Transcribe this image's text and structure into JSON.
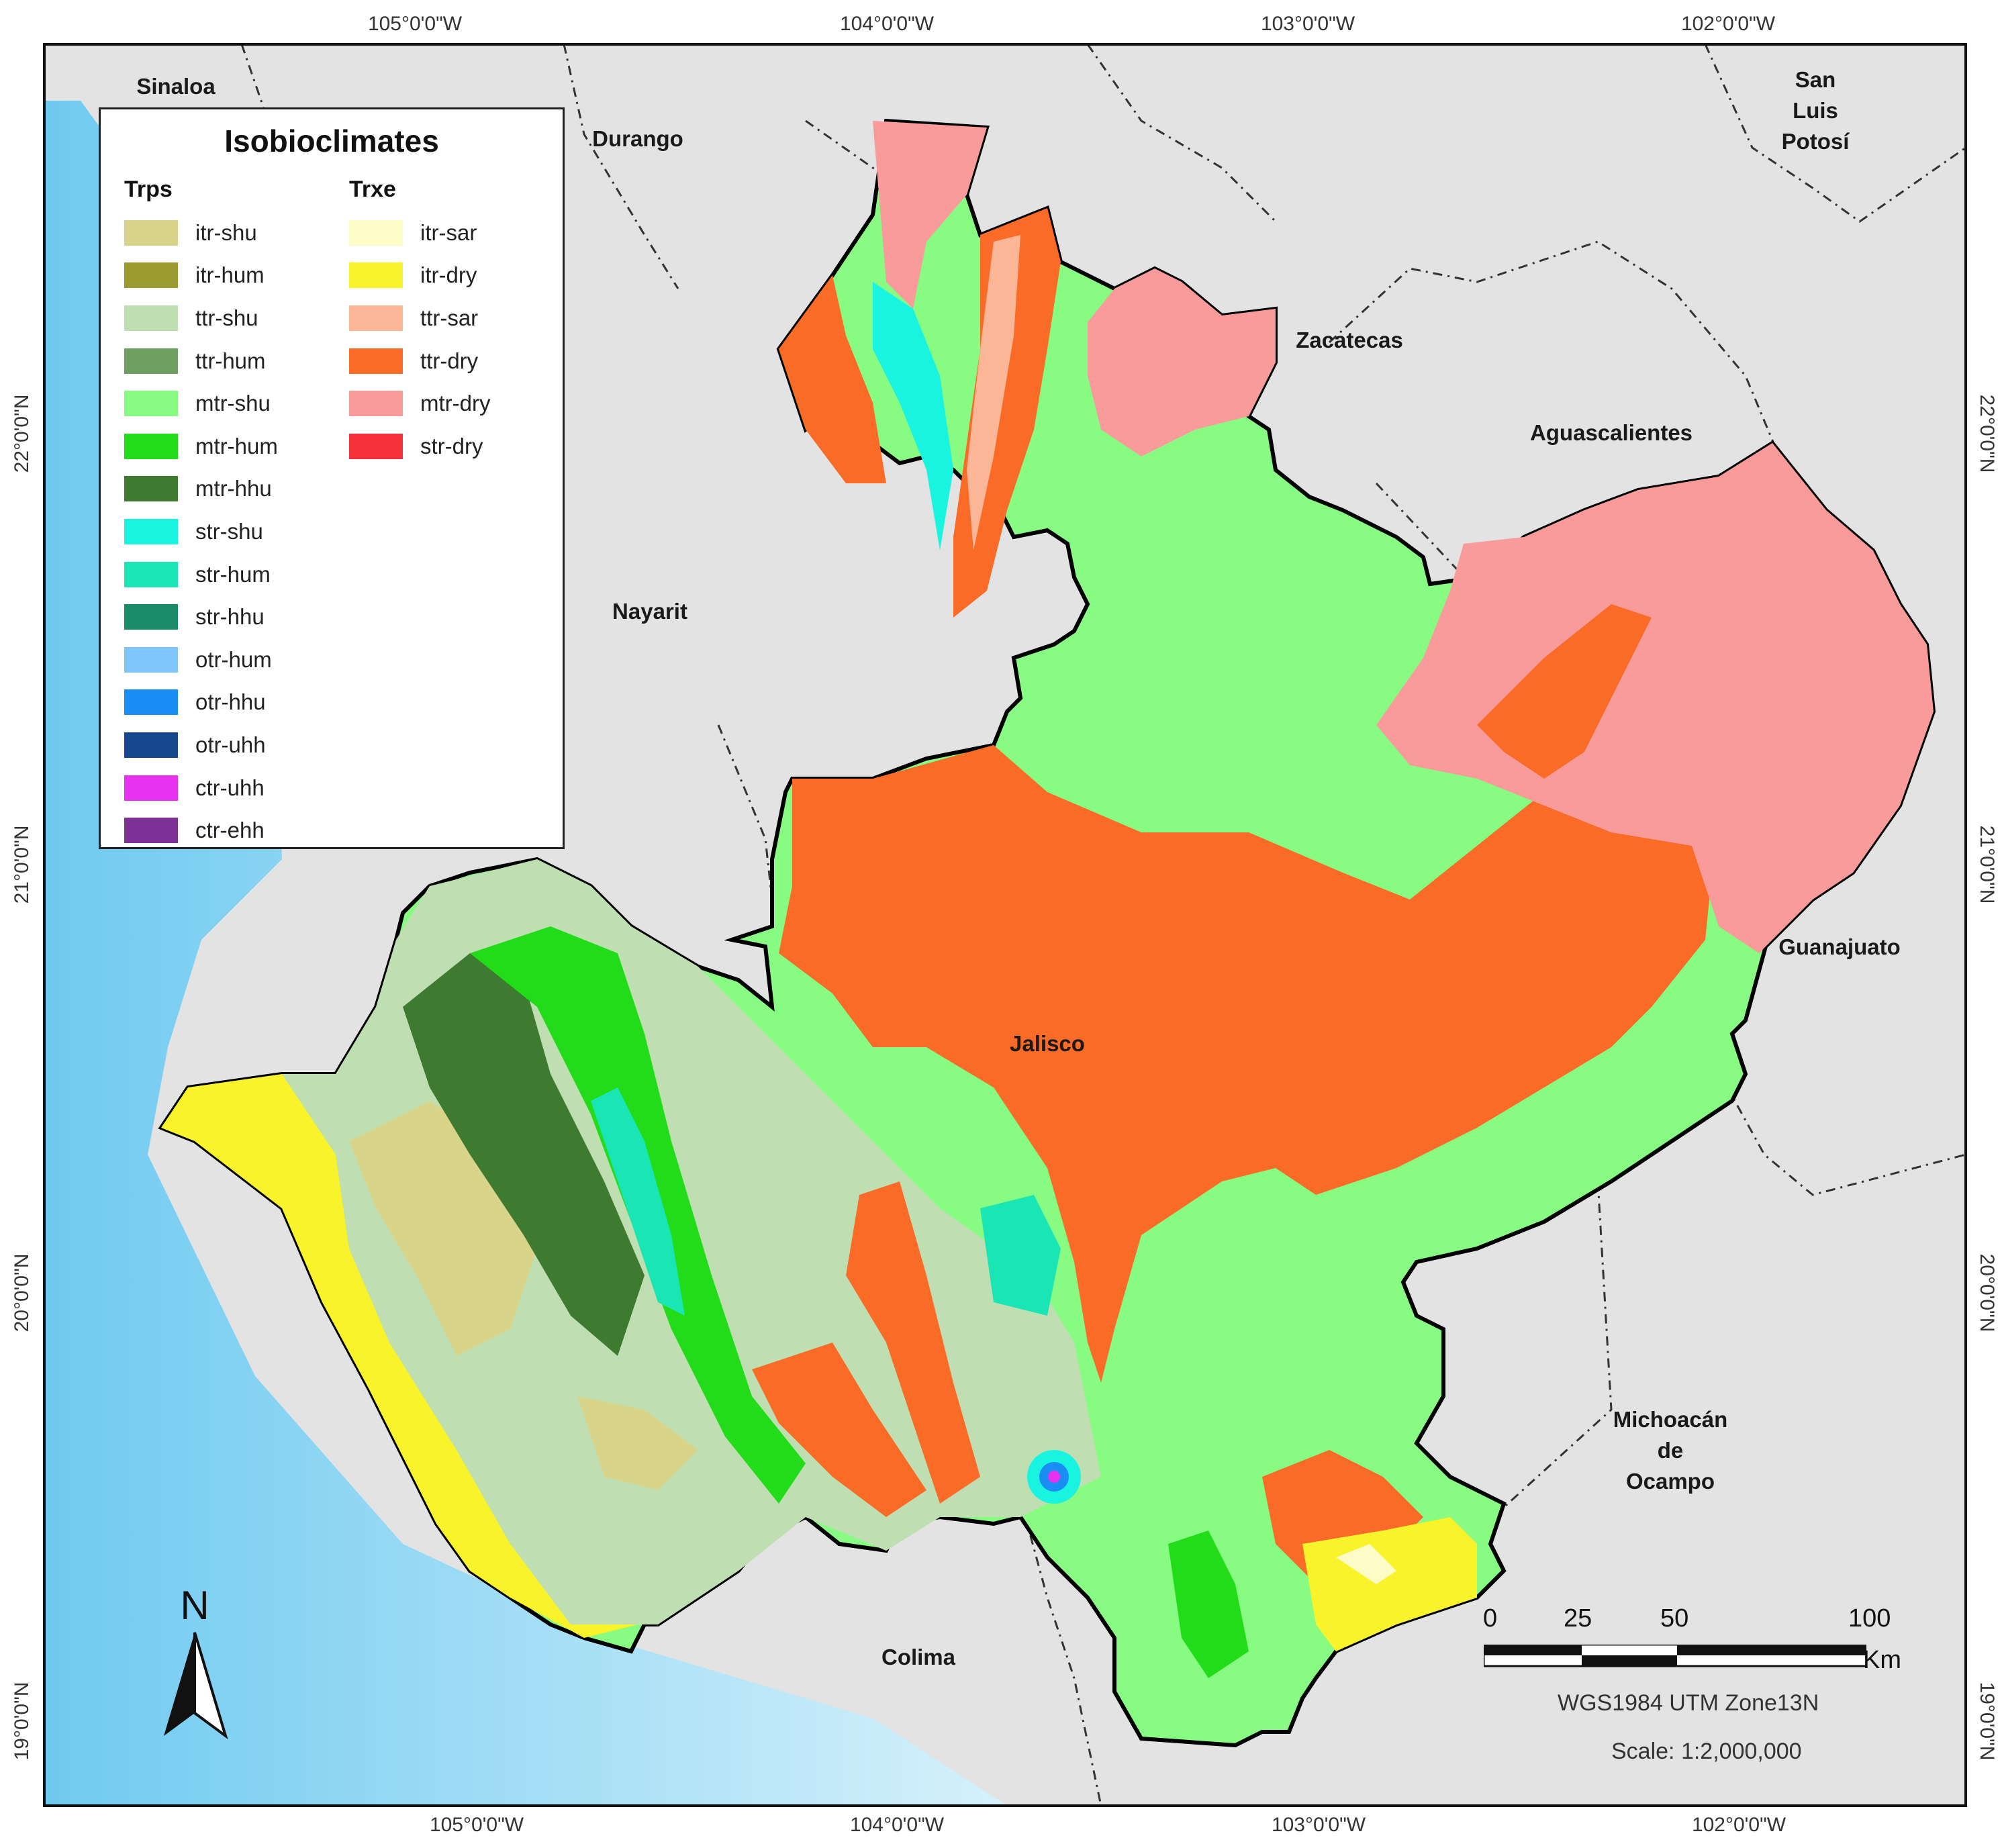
{
  "legend": {
    "title": "Isobioclimates",
    "group1": {
      "heading": "Trps",
      "items": [
        {
          "label": "itr-shu",
          "color": "#d8d48a"
        },
        {
          "label": "itr-hum",
          "color": "#9a9a2e"
        },
        {
          "label": "ttr-shu",
          "color": "#bfdfb2"
        },
        {
          "label": "ttr-hum",
          "color": "#6f9e63"
        },
        {
          "label": "mtr-shu",
          "color": "#88fb82"
        },
        {
          "label": "mtr-hum",
          "color": "#22dc1a"
        },
        {
          "label": "mtr-hhu",
          "color": "#3e7a2f"
        },
        {
          "label": "str-shu",
          "color": "#19f4e0"
        },
        {
          "label": "str-hum",
          "color": "#19e6b4"
        },
        {
          "label": "str-hhu",
          "color": "#1a8c6a"
        },
        {
          "label": "otr-hum",
          "color": "#7ec6fb"
        },
        {
          "label": "otr-hhu",
          "color": "#1a8ef4"
        },
        {
          "label": "otr-uhh",
          "color": "#17488e"
        },
        {
          "label": "ctr-uhh",
          "color": "#e932f0"
        },
        {
          "label": "ctr-ehh",
          "color": "#7d3196"
        }
      ]
    },
    "group2": {
      "heading": "Trxe",
      "items": [
        {
          "label": "itr-sar",
          "color": "#fdfbc6"
        },
        {
          "label": "itr-dry",
          "color": "#f8f32a"
        },
        {
          "label": "ttr-sar",
          "color": "#fbb597"
        },
        {
          "label": "ttr-dry",
          "color": "#f96b26"
        },
        {
          "label": "mtr-dry",
          "color": "#f99b9b"
        },
        {
          "label": "str-dry",
          "color": "#f4303a"
        }
      ]
    }
  },
  "graticule": {
    "lon_top": [
      "105°0'0\"W",
      "104°0'0\"W",
      "103°0'0\"W",
      "102°0'0\"W"
    ],
    "lon_bottom": [
      "105°0'0\"W",
      "104°0'0\"W",
      "103°0'0\"W",
      "102°0'0\"W"
    ],
    "lat_left": [
      "22°0'0\"N",
      "21°0'0\"N",
      "20°0'0\"N",
      "19°0'0\"N"
    ],
    "lat_right": [
      "22°0'0\"N",
      "21°0'0\"N",
      "20°0'0\"N",
      "19°0'0\"N"
    ]
  },
  "regions": {
    "sinaloa": "Sinaloa",
    "durango": "Durango",
    "san_luis_1": "San",
    "san_luis_2": "Luis",
    "san_luis_3": "Potosí",
    "zacatecas": "Zacatecas",
    "aguascalientes": "Aguascalientes",
    "nayarit": "Nayarit",
    "guanajuato": "Guanajuato",
    "jalisco": "Jalisco",
    "michoacan_1": "Michoacán",
    "michoacan_2": "de",
    "michoacan_3": "Ocampo",
    "colima": "Colima"
  },
  "north_arrow": "N",
  "scale_bar": {
    "ticks": [
      "0",
      "25",
      "50",
      "100"
    ],
    "unit": "Km",
    "projection": "WGS1984 UTM Zone13N",
    "scale": "Scale: 1:2,000,000"
  },
  "colors": {
    "ocean": "#7fd2f0",
    "land": "#e4e4e4",
    "boundary": "#111111"
  }
}
